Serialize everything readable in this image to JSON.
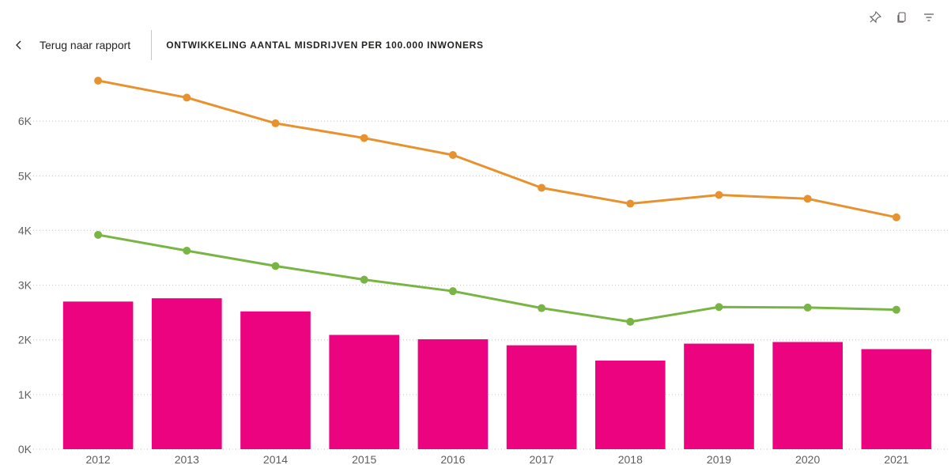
{
  "header": {
    "back_label": "Terug naar rapport",
    "title": "ONTWIKKELING AANTAL MISDRIJVEN PER 100.000 INWONERS"
  },
  "toolbar": {
    "icons": [
      "pin-icon",
      "copy-icon",
      "filter-icon"
    ]
  },
  "chart_data": {
    "type": "bar",
    "categories": [
      "2012",
      "2013",
      "2014",
      "2015",
      "2016",
      "2017",
      "2018",
      "2019",
      "2020",
      "2021"
    ],
    "y_ticks": [
      "0K",
      "1K",
      "2K",
      "3K",
      "4K",
      "5K",
      "6K"
    ],
    "ylim": [
      0,
      7000
    ],
    "grid": true,
    "bars": {
      "color": "#ec037f",
      "values": [
        2700,
        2760,
        2520,
        2090,
        2010,
        1900,
        1620,
        1930,
        1960,
        1830
      ]
    },
    "lines": [
      {
        "color": "#e8922f",
        "values": [
          6740,
          6430,
          5960,
          5690,
          5380,
          4780,
          4490,
          4650,
          4580,
          4240
        ]
      },
      {
        "color": "#78b544",
        "values": [
          3920,
          3630,
          3350,
          3100,
          2890,
          2580,
          2330,
          2600,
          2590,
          2550
        ]
      }
    ]
  }
}
